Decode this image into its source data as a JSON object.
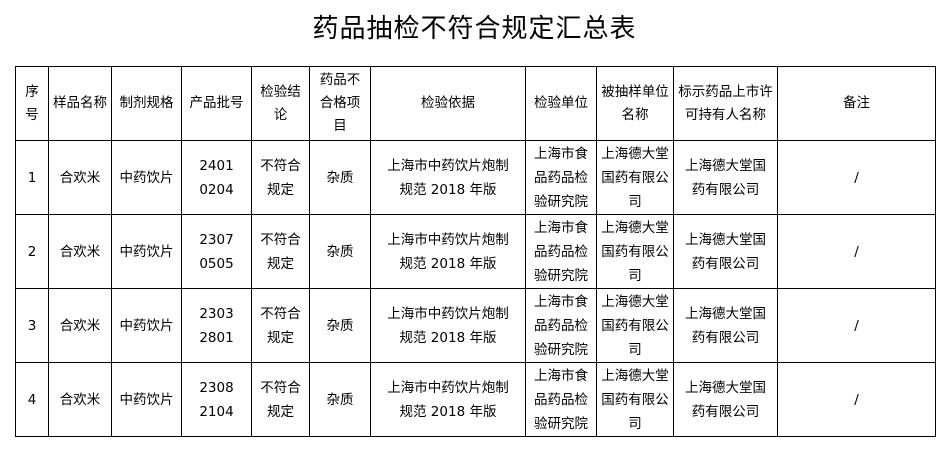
{
  "title": "药品抽检不符合规定汇总表",
  "headers": [
    "序号",
    "样品名称",
    "制剂规格",
    "产品批号",
    "检验结论",
    "药品不合格项目",
    "检验依据",
    "检验单位",
    "被抽样单位名称",
    "标示药品上市许可持有人名称",
    "备注"
  ],
  "rows": [
    [
      "1",
      "合欢米",
      "中药饮片",
      "24010204",
      "不符合规定",
      "杂质",
      "上海市中药饮片炮制规范 2018 年版",
      "上海市食品药品检验研究院",
      "上海德大堂国药有限公司",
      "上海德大堂国药有限公司",
      "/"
    ],
    [
      "2",
      "合欢米",
      "中药饮片",
      "23070505",
      "不符合规定",
      "杂质",
      "上海市中药饮片炮制规范 2018 年版",
      "上海市食品药品检验研究院",
      "上海德大堂国药有限公司",
      "上海德大堂国药有限公司",
      "/"
    ],
    [
      "3",
      "合欢米",
      "中药饮片",
      "23032801",
      "不符合规定",
      "杂质",
      "上海市中药饮片炮制规范 2018 年版",
      "上海市食品药品检验研究院",
      "上海德大堂国药有限公司",
      "上海德大堂国药有限公司",
      "/"
    ],
    [
      "4",
      "合欢米",
      "中药饮片",
      "23082104",
      "不符合规定",
      "杂质",
      "上海市中药饮片炮制规范 2018 年版",
      "上海市食品药品检验研究院",
      "上海德大堂国药有限公司",
      "上海德大堂国药有限公司",
      "/"
    ]
  ]
}
